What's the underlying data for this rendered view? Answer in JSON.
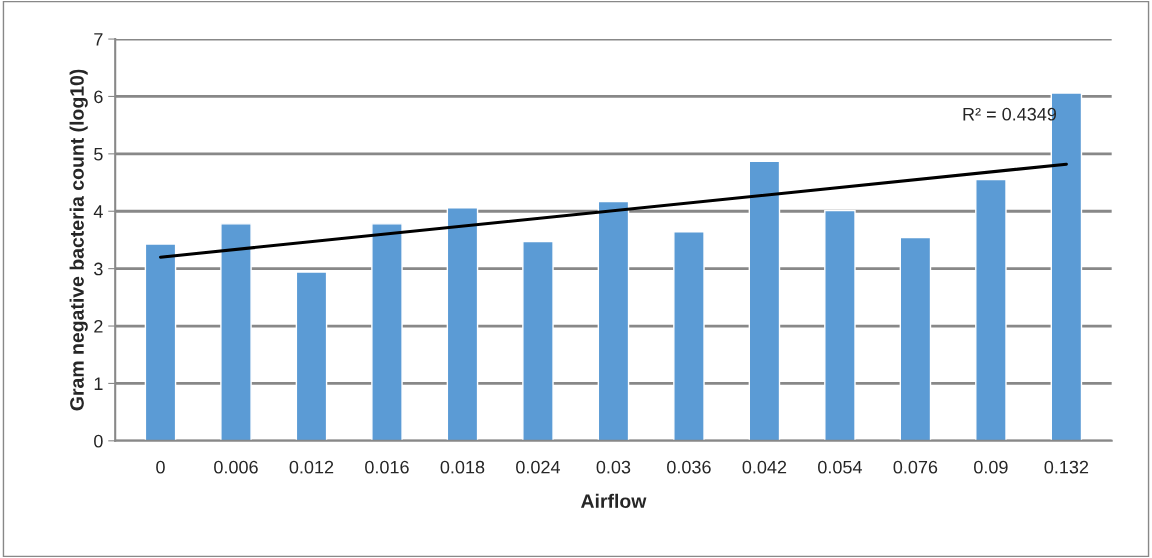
{
  "chart_data": {
    "type": "bar",
    "xlabel": "Airflow",
    "ylabel": "Gram negative bacteria count (log10)",
    "categories": [
      "0",
      "0.006",
      "0.012",
      "0.016",
      "0.018",
      "0.024",
      "0.03",
      "0.036",
      "0.042",
      "0.054",
      "0.076",
      "0.09",
      "0.132"
    ],
    "series": [
      {
        "color": "#5b9bd5",
        "values": [
          3.43,
          3.78,
          2.94,
          3.78,
          4.06,
          3.47,
          4.17,
          3.64,
          4.87,
          4.01,
          3.54,
          4.55,
          6.06
        ]
      },
      {
        "type": "line",
        "color": "#000000",
        "x": [
          "0",
          "0.132"
        ],
        "values": [
          3.2,
          4.82
        ]
      }
    ],
    "ylim": [
      0,
      7
    ],
    "yticks": [
      0,
      1,
      2,
      3,
      4,
      5,
      6,
      7
    ],
    "grid": "y",
    "annotations": [
      "R² = 0.4349"
    ]
  }
}
